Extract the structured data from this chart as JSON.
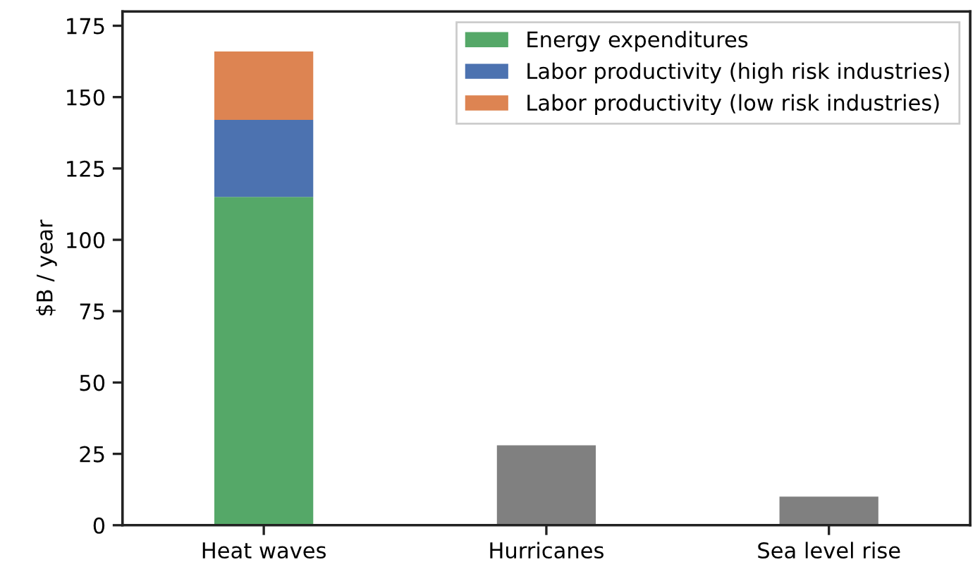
{
  "chart_data": {
    "type": "bar",
    "stacked": true,
    "ylabel": "$B / year",
    "categories": [
      "Heat waves",
      "Hurricanes",
      "Sea level rise"
    ],
    "series": [
      {
        "name": "Energy expenditures",
        "color": "#55a868",
        "values": [
          115,
          null,
          null
        ]
      },
      {
        "name": "Labor productivity (high risk industries)",
        "color": "#4c72b0",
        "values": [
          27,
          null,
          null
        ]
      },
      {
        "name": "Labor productivity (low risk industries)",
        "color": "#dd8452",
        "values": [
          24,
          null,
          null
        ]
      },
      {
        "color": "#808080",
        "values": [
          null,
          28,
          10
        ]
      }
    ],
    "ylim": [
      0,
      180
    ],
    "yticks": [
      0,
      25,
      50,
      75,
      100,
      125,
      150,
      175
    ],
    "grid": false,
    "legend": "top right"
  }
}
